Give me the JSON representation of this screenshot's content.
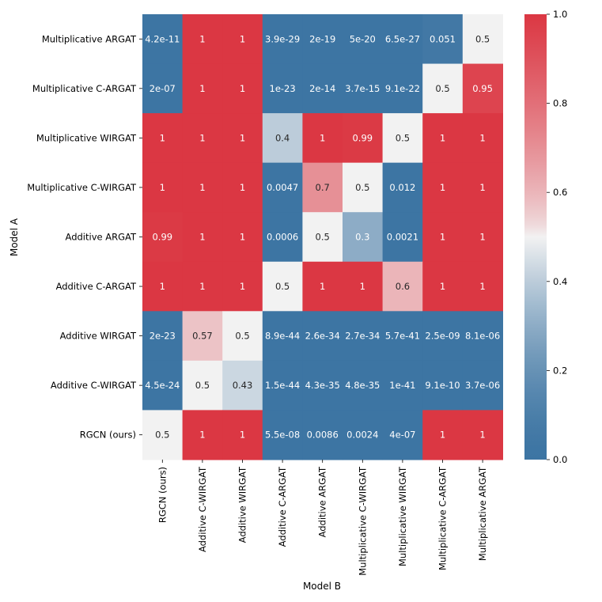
{
  "chart_data": {
    "type": "heatmap",
    "title": "",
    "xlabel": "Model B",
    "ylabel": "Model A",
    "x_categories": [
      "RGCN (ours)",
      "Additive C-WIRGAT",
      "Additive WIRGAT",
      "Additive C-ARGAT",
      "Additive ARGAT",
      "Multiplicative C-WIRGAT",
      "Multiplicative WIRGAT",
      "Multiplicative C-ARGAT",
      "Multiplicative ARGAT"
    ],
    "y_categories": [
      "Multiplicative ARGAT",
      "Multiplicative C-ARGAT",
      "Multiplicative WIRGAT",
      "Multiplicative C-WIRGAT",
      "Additive ARGAT",
      "Additive C-ARGAT",
      "Additive WIRGAT",
      "Additive C-WIRGAT",
      "RGCN (ours)"
    ],
    "values": [
      [
        4.2e-11,
        1,
        1,
        3.9e-29,
        2e-19,
        5e-20,
        6.5e-27,
        0.051,
        0.5
      ],
      [
        2e-07,
        1,
        1,
        1e-23,
        2e-14,
        3.7e-15,
        9.1e-22,
        0.5,
        0.95
      ],
      [
        1,
        1,
        1,
        0.4,
        1,
        0.99,
        0.5,
        1,
        1
      ],
      [
        1,
        1,
        1,
        0.0047,
        0.7,
        0.5,
        0.012,
        1,
        1
      ],
      [
        0.99,
        1,
        1,
        0.0006,
        0.5,
        0.3,
        0.0021,
        1,
        1
      ],
      [
        1,
        1,
        1,
        0.5,
        1,
        1,
        0.6,
        1,
        1
      ],
      [
        2e-23,
        0.57,
        0.5,
        8.9e-44,
        2.6e-34,
        2.7e-34,
        5.7e-41,
        2.5e-09,
        8.1e-06
      ],
      [
        4.5e-24,
        0.5,
        0.43,
        1.5e-44,
        4.3e-35,
        4.8e-35,
        1e-41,
        9.1e-10,
        3.7e-06
      ],
      [
        0.5,
        1,
        1,
        5.5e-08,
        0.0086,
        0.0024,
        4e-07,
        1,
        1
      ]
    ],
    "labels": [
      [
        "4.2e-11",
        "1",
        "1",
        "3.9e-29",
        "2e-19",
        "5e-20",
        "6.5e-27",
        "0.051",
        "0.5"
      ],
      [
        "2e-07",
        "1",
        "1",
        "1e-23",
        "2e-14",
        "3.7e-15",
        "9.1e-22",
        "0.5",
        "0.95"
      ],
      [
        "1",
        "1",
        "1",
        "0.4",
        "1",
        "0.99",
        "0.5",
        "1",
        "1"
      ],
      [
        "1",
        "1",
        "1",
        "0.0047",
        "0.7",
        "0.5",
        "0.012",
        "1",
        "1"
      ],
      [
        "0.99",
        "1",
        "1",
        "0.0006",
        "0.5",
        "0.3",
        "0.0021",
        "1",
        "1"
      ],
      [
        "1",
        "1",
        "1",
        "0.5",
        "1",
        "1",
        "0.6",
        "1",
        "1"
      ],
      [
        "2e-23",
        "0.57",
        "0.5",
        "8.9e-44",
        "2.6e-34",
        "2.7e-34",
        "5.7e-41",
        "2.5e-09",
        "8.1e-06"
      ],
      [
        "4.5e-24",
        "0.5",
        "0.43",
        "1.5e-44",
        "4.3e-35",
        "4.8e-35",
        "1e-41",
        "9.1e-10",
        "3.7e-06"
      ],
      [
        "0.5",
        "1",
        "1",
        "5.5e-08",
        "0.0086",
        "0.0024",
        "4e-07",
        "1",
        "1"
      ]
    ],
    "colorbar": {
      "range": [
        0.0,
        1.0
      ],
      "ticks": [
        0.0,
        0.2,
        0.4,
        0.6,
        0.8,
        1.0
      ],
      "tick_labels": [
        "0.0",
        "0.2",
        "0.4",
        "0.6",
        "0.8",
        "1.0"
      ],
      "colormap": "diverging blue-white-red",
      "low_color": "#3d75a3",
      "mid_color": "#f2f2f2",
      "high_color": "#db3743"
    },
    "grid": false,
    "legend": "colorbar-right"
  }
}
